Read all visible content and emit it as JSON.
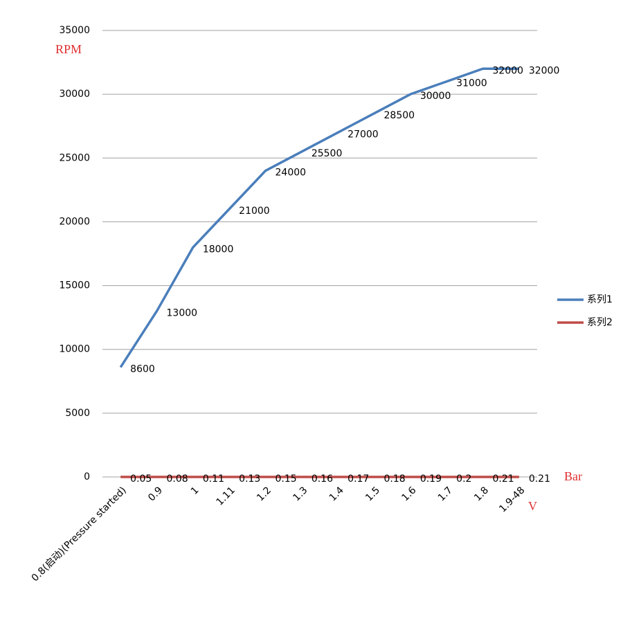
{
  "chart_data": {
    "type": "line",
    "categories": [
      "0.8(启动)(Pressure started)",
      "0.9",
      "1",
      "1.11",
      "1.2",
      "1.3",
      "1.4",
      "1.5",
      "1.6",
      "1.7",
      "1.8",
      "1.9-48"
    ],
    "series": [
      {
        "name": "系列1",
        "color": "#4a7ebb",
        "values": [
          8600,
          13000,
          18000,
          21000,
          24000,
          25500,
          27000,
          28500,
          30000,
          31000,
          32000,
          32000
        ]
      },
      {
        "name": "系列2",
        "color": "#be4b48",
        "values": [
          0.05,
          0.08,
          0.11,
          0.13,
          0.15,
          0.16,
          0.17,
          0.18,
          0.19,
          0.2,
          0.21,
          0.21
        ]
      }
    ],
    "ylim": [
      0,
      35000
    ],
    "yticks": [
      0,
      5000,
      10000,
      15000,
      20000,
      25000,
      30000,
      35000
    ],
    "grid": true,
    "legend": "right",
    "ylabel": "RPM",
    "xlabel": "V",
    "annotations": [
      "Bar"
    ]
  }
}
